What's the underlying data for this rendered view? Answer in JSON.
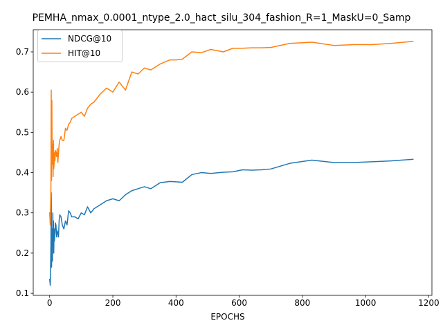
{
  "chart_data": {
    "type": "line",
    "title": "PEMHA_nmax_0.0001_ntype_2.0_hact_silu_304_fashion_R=1_MaskU=0_Samp",
    "xlabel": "EPOCHS",
    "ylabel": "",
    "xlim": [
      -52,
      1210
    ],
    "ylim": [
      0.095,
      0.755
    ],
    "xticks": [
      0,
      200,
      400,
      600,
      800,
      1000,
      1200
    ],
    "xtick_labels": [
      "0",
      "200",
      "400",
      "600",
      "800",
      "1000",
      "1200"
    ],
    "yticks": [
      0.1,
      0.2,
      0.3,
      0.4,
      0.5,
      0.6,
      0.7
    ],
    "ytick_labels": [
      "0.1",
      "0.2",
      "0.3",
      "0.4",
      "0.5",
      "0.6",
      "0.7"
    ],
    "grid": false,
    "legend_position": "top-left",
    "series": [
      {
        "name": "NDCG@10",
        "color": "#1f77b4",
        "x": [
          0,
          2,
          4,
          5,
          6,
          7,
          8,
          9,
          10,
          11,
          12,
          13,
          14,
          15,
          16,
          17,
          18,
          20,
          22,
          24,
          26,
          28,
          30,
          32,
          36,
          40,
          45,
          50,
          55,
          60,
          65,
          70,
          80,
          90,
          100,
          110,
          120,
          130,
          140,
          160,
          180,
          200,
          220,
          240,
          260,
          280,
          300,
          320,
          350,
          380,
          400,
          420,
          450,
          480,
          510,
          550,
          580,
          610,
          640,
          670,
          700,
          760,
          830,
          900,
          960,
          1020,
          1080,
          1150
        ],
        "y": [
          0.135,
          0.12,
          0.22,
          0.35,
          0.165,
          0.2,
          0.26,
          0.18,
          0.3,
          0.22,
          0.28,
          0.2,
          0.26,
          0.23,
          0.24,
          0.25,
          0.275,
          0.27,
          0.24,
          0.255,
          0.25,
          0.24,
          0.28,
          0.295,
          0.29,
          0.27,
          0.26,
          0.28,
          0.27,
          0.305,
          0.3,
          0.29,
          0.29,
          0.285,
          0.3,
          0.295,
          0.315,
          0.3,
          0.31,
          0.32,
          0.33,
          0.335,
          0.33,
          0.345,
          0.355,
          0.36,
          0.365,
          0.36,
          0.375,
          0.378,
          0.377,
          0.376,
          0.395,
          0.4,
          0.398,
          0.401,
          0.402,
          0.407,
          0.406,
          0.407,
          0.409,
          0.423,
          0.431,
          0.425,
          0.425,
          0.427,
          0.429,
          0.433
        ]
      },
      {
        "name": "HIT@10",
        "color": "#ff7f0e",
        "x": [
          0,
          2,
          4,
          5,
          6,
          7,
          8,
          9,
          10,
          11,
          12,
          13,
          14,
          15,
          16,
          17,
          18,
          20,
          22,
          24,
          26,
          28,
          30,
          32,
          36,
          40,
          45,
          50,
          55,
          60,
          65,
          70,
          80,
          90,
          100,
          110,
          120,
          130,
          140,
          160,
          180,
          200,
          220,
          240,
          260,
          280,
          300,
          320,
          350,
          380,
          400,
          420,
          450,
          480,
          510,
          550,
          580,
          610,
          640,
          670,
          700,
          760,
          830,
          900,
          960,
          1020,
          1080,
          1150
        ],
        "y": [
          0.3,
          0.27,
          0.36,
          0.605,
          0.38,
          0.58,
          0.42,
          0.47,
          0.45,
          0.39,
          0.48,
          0.41,
          0.42,
          0.44,
          0.45,
          0.43,
          0.455,
          0.45,
          0.44,
          0.46,
          0.425,
          0.45,
          0.47,
          0.48,
          0.49,
          0.48,
          0.48,
          0.51,
          0.505,
          0.52,
          0.525,
          0.535,
          0.54,
          0.545,
          0.55,
          0.54,
          0.56,
          0.57,
          0.575,
          0.595,
          0.61,
          0.6,
          0.625,
          0.605,
          0.65,
          0.645,
          0.66,
          0.655,
          0.67,
          0.68,
          0.68,
          0.682,
          0.7,
          0.698,
          0.706,
          0.7,
          0.709,
          0.709,
          0.71,
          0.71,
          0.711,
          0.721,
          0.724,
          0.716,
          0.718,
          0.718,
          0.721,
          0.726
        ]
      }
    ]
  }
}
